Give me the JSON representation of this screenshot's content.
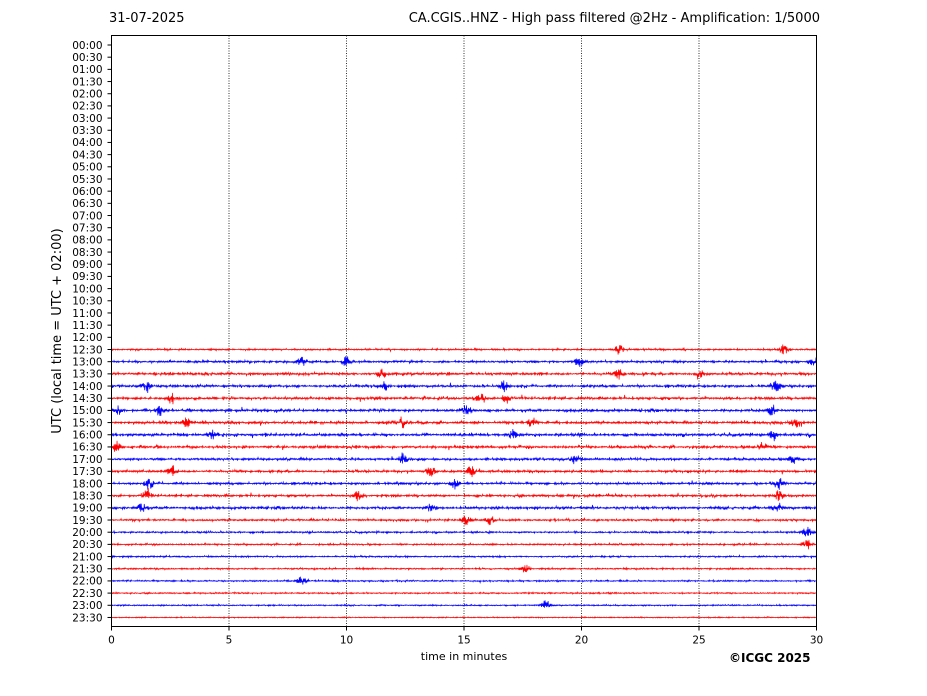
{
  "header": {
    "date": "31-07-2025",
    "title": "CA.CGIS..HNZ - High pass filtered @2Hz - Amplification: 1/5000"
  },
  "copyright": "©ICGC 2025",
  "colors": {
    "trace_a": "#0000ff",
    "trace_b": "#ff0000",
    "grid": "#000000"
  },
  "chart_data": {
    "type": "line",
    "title": "CA.CGIS..HNZ - High pass filtered @2Hz - Amplification: 1/5000",
    "xlabel": "time in minutes",
    "ylabel": "UTC (local time = UTC + 02:00)",
    "xlim": [
      0,
      30
    ],
    "x_ticks": [
      "0",
      "5",
      "10",
      "15",
      "20",
      "25",
      "30"
    ],
    "y_tick_labels": [
      "00:00",
      "00:30",
      "01:00",
      "01:30",
      "02:00",
      "02:30",
      "03:00",
      "03:30",
      "04:00",
      "04:30",
      "05:00",
      "05:30",
      "06:00",
      "06:30",
      "07:00",
      "07:30",
      "08:00",
      "08:30",
      "09:00",
      "09:30",
      "10:00",
      "10:30",
      "11:00",
      "11:30",
      "12:00",
      "12:30",
      "13:00",
      "13:30",
      "14:00",
      "14:30",
      "15:00",
      "15:30",
      "16:00",
      "16:30",
      "17:00",
      "17:30",
      "18:00",
      "18:30",
      "19:00",
      "19:30",
      "20:00",
      "20:30",
      "21:00",
      "21:30",
      "22:00",
      "22:30",
      "23:00",
      "23:30"
    ],
    "vertical_grid_x": [
      5,
      10,
      15,
      20,
      25
    ],
    "grid": "vertical dotted lines",
    "series_colors_alternate": [
      "blue",
      "red"
    ],
    "traces_start": "12:30",
    "trace_activity": [
      {
        "row": "12:30",
        "level": 0.3,
        "events": [
          21.6,
          28.6
        ]
      },
      {
        "row": "13:00",
        "level": 0.45,
        "events": [
          8.1,
          10,
          19.9,
          29.9
        ]
      },
      {
        "row": "13:30",
        "level": 0.55,
        "events": [
          11.5,
          21.6,
          25
        ]
      },
      {
        "row": "14:00",
        "level": 0.55,
        "events": [
          1.5,
          11.6,
          16.7,
          28.3
        ]
      },
      {
        "row": "14:30",
        "level": 0.6,
        "events": [
          2.6,
          15.7,
          16.8
        ]
      },
      {
        "row": "15:00",
        "level": 0.6,
        "events": [
          0.3,
          2.1,
          15.1,
          28.1
        ]
      },
      {
        "row": "15:30",
        "level": 0.6,
        "events": [
          3.2,
          12.4,
          17.9,
          29.1
        ]
      },
      {
        "row": "16:00",
        "level": 0.6,
        "events": [
          4.3,
          17.1,
          28.2
        ]
      },
      {
        "row": "16:30",
        "level": 0.55,
        "events": [
          0.2,
          27.7
        ]
      },
      {
        "row": "17:00",
        "level": 0.5,
        "events": [
          12.4,
          19.7,
          29
        ]
      },
      {
        "row": "17:30",
        "level": 0.5,
        "events": [
          2.6,
          13.6,
          15.3
        ]
      },
      {
        "row": "18:00",
        "level": 0.5,
        "events": [
          1.6,
          14.6,
          28.4
        ]
      },
      {
        "row": "18:30",
        "level": 0.55,
        "events": [
          1.5,
          10.5,
          28.4
        ]
      },
      {
        "row": "19:00",
        "level": 0.55,
        "events": [
          1.3,
          13.6,
          28.4
        ]
      },
      {
        "row": "19:30",
        "level": 0.4,
        "events": [
          15.1,
          16.1
        ]
      },
      {
        "row": "20:00",
        "level": 0.3,
        "events": [
          29.6
        ]
      },
      {
        "row": "20:30",
        "level": 0.3,
        "events": [
          29.6
        ]
      },
      {
        "row": "21:00",
        "level": 0.25,
        "events": []
      },
      {
        "row": "21:30",
        "level": 0.25,
        "events": [
          17.6
        ]
      },
      {
        "row": "22:00",
        "level": 0.25,
        "events": [
          8.1
        ]
      },
      {
        "row": "22:30",
        "level": 0.2,
        "events": []
      },
      {
        "row": "23:00",
        "level": 0.18,
        "events": [
          18.5
        ]
      },
      {
        "row": "23:30",
        "level": 0.1,
        "events": []
      }
    ]
  }
}
